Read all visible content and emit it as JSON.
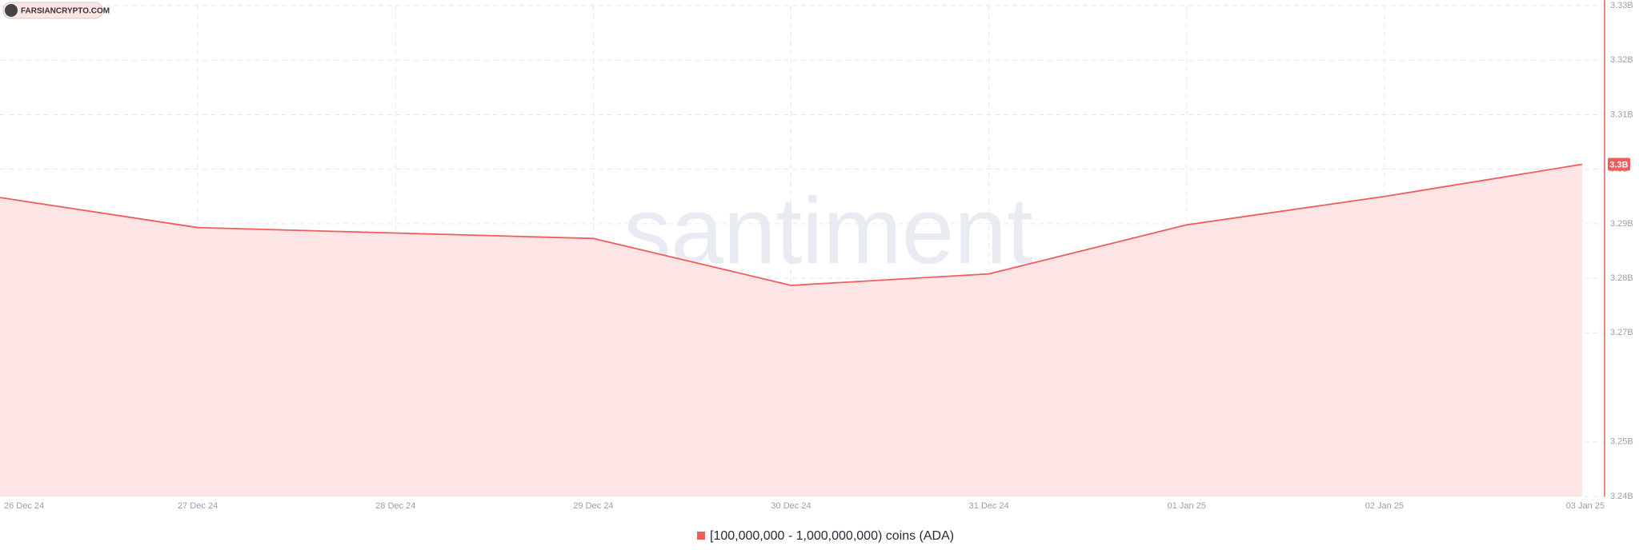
{
  "chart_data": {
    "type": "area",
    "watermark": "santiment",
    "logo": "FARSIANCRYPTO.COM",
    "categories": [
      "26 Dec 24",
      "27 Dec 24",
      "28 Dec 24",
      "29 Dec 24",
      "30 Dec 24",
      "31 Dec 24",
      "01 Jan 25",
      "02 Jan 25",
      "03 Jan 25"
    ],
    "series": [
      {
        "name": "[100,000,000 - 1,000,000,000) coins (ADA)",
        "color": "#f25c5c",
        "fill": "#fde5e6",
        "values": [
          3.2948,
          3.2893,
          3.2883,
          3.2873,
          3.2787,
          3.2808,
          3.2898,
          3.295,
          3.3009
        ],
        "value_labels": [
          null,
          null,
          null,
          null,
          null,
          null,
          null,
          null,
          "3.3B"
        ]
      }
    ],
    "ylim": [
      3.24,
      3.33
    ],
    "yticks": [
      {
        "value": 3.24,
        "label": "3.24B"
      },
      {
        "value": 3.25,
        "label": "3.25B"
      },
      {
        "value": 3.27,
        "label": "3.27B"
      },
      {
        "value": 3.28,
        "label": "3.28B"
      },
      {
        "value": 3.29,
        "label": "3.29B"
      },
      {
        "value": 3.3,
        "label": "3.3B"
      },
      {
        "value": 3.31,
        "label": "3.31B"
      },
      {
        "value": 3.32,
        "label": "3.32B"
      },
      {
        "value": 3.33,
        "label": "3.33B"
      }
    ],
    "grid": true
  }
}
